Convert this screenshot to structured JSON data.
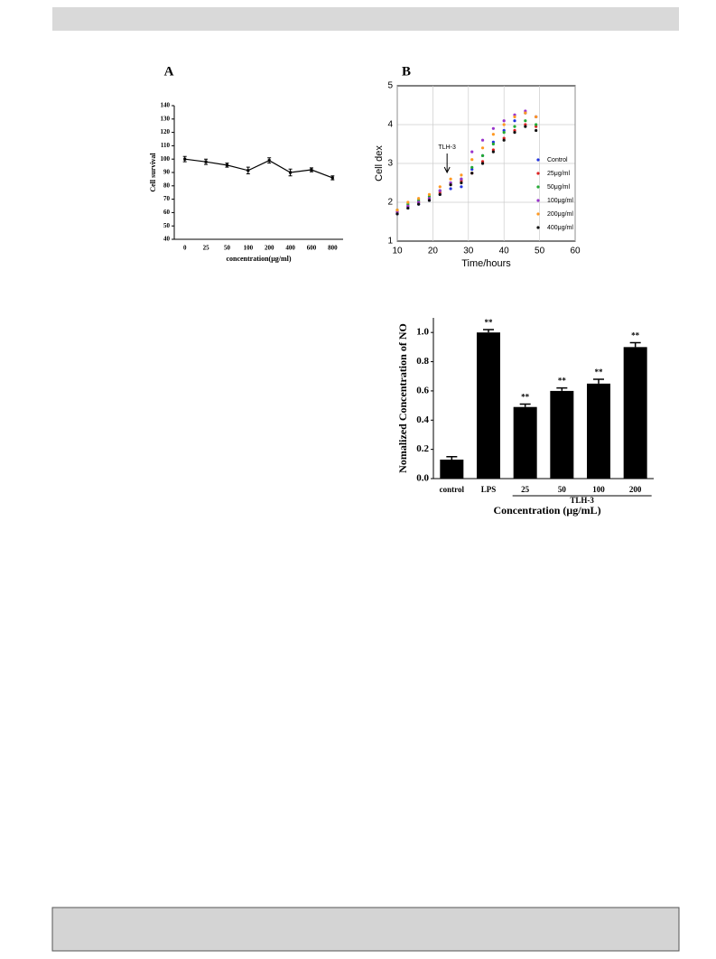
{
  "chart_data": [
    {
      "type": "line",
      "panel": "A",
      "xlabel": "concentration(μg/ml)",
      "ylabel": "Cell survival",
      "categories": [
        "0",
        "25",
        "50",
        "100",
        "200",
        "400",
        "600",
        "800"
      ],
      "values": [
        100,
        98,
        95.5,
        91.5,
        99,
        90,
        92,
        86
      ],
      "errors": [
        2,
        2,
        1.5,
        2.5,
        2,
        2.5,
        1.5,
        1.5
      ],
      "color": "#000000",
      "ylim": [
        40,
        140
      ],
      "yticks": [
        40,
        50,
        60,
        70,
        80,
        90,
        100,
        110,
        120,
        130,
        140
      ]
    },
    {
      "type": "scatter",
      "panel": "B",
      "xlabel": "Time/hours",
      "ylabel": "Cell dex",
      "annotation": "TLH-3",
      "annotation_x": 24,
      "x": [
        10,
        13,
        16,
        19,
        22,
        25,
        28,
        31,
        34,
        37,
        40,
        43,
        46,
        49
      ],
      "series": [
        {
          "name": "Control",
          "color": "#2233dd",
          "values": [
            1.7,
            1.85,
            1.95,
            2.05,
            2.2,
            2.35,
            2.4,
            2.85,
            3.2,
            3.55,
            3.85,
            4.1,
            4.3,
            4.2
          ]
        },
        {
          "name": "25μg/ml",
          "color": "#dd2222",
          "values": [
            1.75,
            1.9,
            2.0,
            2.1,
            2.25,
            2.45,
            2.55,
            2.75,
            3.05,
            3.35,
            3.65,
            3.85,
            4.0,
            3.95
          ]
        },
        {
          "name": "50μg/ml",
          "color": "#22aa33",
          "values": [
            1.8,
            1.95,
            2.05,
            2.15,
            2.3,
            2.5,
            2.6,
            2.9,
            3.2,
            3.5,
            3.8,
            3.95,
            4.1,
            4.0
          ]
        },
        {
          "name": "100μg/ml",
          "color": "#9933cc",
          "values": [
            1.75,
            1.9,
            2.0,
            2.1,
            2.3,
            2.5,
            2.6,
            3.3,
            3.6,
            3.9,
            4.1,
            4.25,
            4.35,
            4.2
          ]
        },
        {
          "name": "200μg/ml",
          "color": "#ff9922",
          "values": [
            1.8,
            2.0,
            2.1,
            2.2,
            2.4,
            2.6,
            2.7,
            3.1,
            3.4,
            3.75,
            4.0,
            4.2,
            4.3,
            4.2
          ]
        },
        {
          "name": "400μg/ml",
          "color": "#111111",
          "values": [
            1.7,
            1.85,
            1.95,
            2.05,
            2.2,
            2.45,
            2.5,
            2.75,
            3.0,
            3.3,
            3.6,
            3.8,
            3.95,
            3.85
          ]
        }
      ],
      "xlim": [
        10,
        60
      ],
      "xticks": [
        10,
        20,
        30,
        40,
        50,
        60
      ],
      "ylim": [
        1,
        5
      ],
      "yticks": [
        1,
        2,
        3,
        4,
        5
      ],
      "grid": true
    },
    {
      "type": "bar",
      "xlabel": "Concentration (μg/mL)",
      "ylabel": "Nomalized Concentration of NO",
      "group_label": "TLH-3",
      "categories": [
        "control",
        "LPS",
        "25",
        "50",
        "100",
        "200"
      ],
      "values": [
        0.13,
        1.0,
        0.49,
        0.6,
        0.65,
        0.9
      ],
      "errors": [
        0.02,
        0.02,
        0.02,
        0.02,
        0.03,
        0.03
      ],
      "annotations": [
        null,
        "**",
        "**",
        "**",
        "**",
        "**"
      ],
      "color": "#000000",
      "ylim": [
        0,
        1.1
      ],
      "yticks": [
        {
          "value": 0,
          "label": "0.0"
        },
        0.2,
        0.4,
        0.6,
        0.8,
        {
          "value": 1,
          "label": "1.0"
        }
      ]
    }
  ]
}
